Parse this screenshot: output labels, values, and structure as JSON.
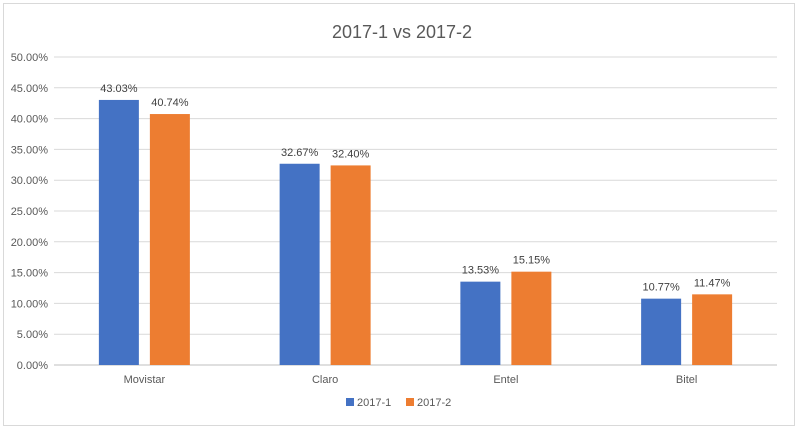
{
  "chart_data": {
    "type": "bar",
    "title": "2017-1 vs 2017-2",
    "xlabel": "",
    "ylabel": "",
    "categories": [
      "Movistar",
      "Claro",
      "Entel",
      "Bitel"
    ],
    "series": [
      {
        "name": "2017-1",
        "color": "#4472c4",
        "values": [
          43.03,
          32.67,
          13.53,
          10.77
        ],
        "labels": [
          "43.03%",
          "32.67%",
          "13.53%",
          "10.77%"
        ]
      },
      {
        "name": "2017-2",
        "color": "#ed7d31",
        "values": [
          40.74,
          32.4,
          15.15,
          11.47
        ],
        "labels": [
          "40.74%",
          "32.40%",
          "15.15%",
          "11.47%"
        ]
      }
    ],
    "ylim": [
      0,
      50
    ],
    "yticks": [
      "0.00%",
      "5.00%",
      "10.00%",
      "15.00%",
      "20.00%",
      "25.00%",
      "30.00%",
      "35.00%",
      "40.00%",
      "45.00%",
      "50.00%"
    ],
    "grid": true,
    "legend_position": "bottom"
  }
}
